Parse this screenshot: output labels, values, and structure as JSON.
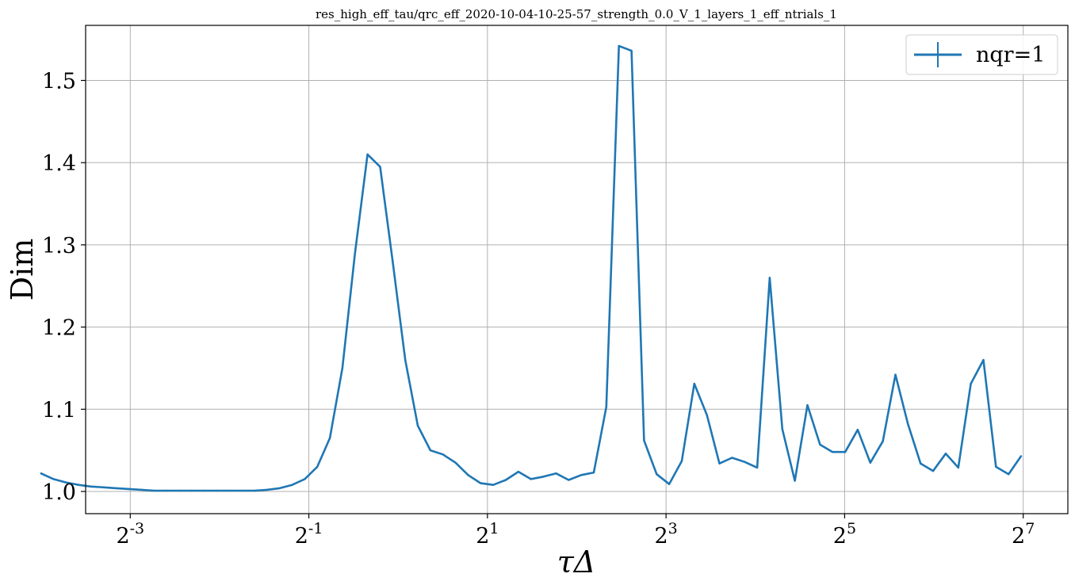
{
  "chart_data": {
    "type": "line",
    "title": "res_high_eff_tau/qrc_eff_2020-10-04-10-25-57_strength_0.0_V_1_layers_1_eff_ntrials_1",
    "xlabel": "τΔ",
    "ylabel": "Dim",
    "x_scale": "log2",
    "xlim": [
      0.0884,
      181.0
    ],
    "ylim": [
      0.973,
      1.567
    ],
    "grid": true,
    "legend_position": "top-right",
    "x_ticks": [
      {
        "base": "2",
        "exp": "-3",
        "value": 0.125
      },
      {
        "base": "2",
        "exp": "-1",
        "value": 0.5
      },
      {
        "base": "2",
        "exp": "1",
        "value": 2
      },
      {
        "base": "2",
        "exp": "3",
        "value": 8
      },
      {
        "base": "2",
        "exp": "5",
        "value": 32
      },
      {
        "base": "2",
        "exp": "7",
        "value": 128
      }
    ],
    "y_ticks": [
      {
        "label": "1.0",
        "value": 1.0
      },
      {
        "label": "1.1",
        "value": 1.1
      },
      {
        "label": "1.2",
        "value": 1.2
      },
      {
        "label": "1.3",
        "value": 1.3
      },
      {
        "label": "1.4",
        "value": 1.4
      },
      {
        "label": "1.5",
        "value": 1.5
      }
    ],
    "series": [
      {
        "name": "nqr=1",
        "color": "#1f77b4",
        "x": [
          0.0625,
          0.0689,
          0.0759,
          0.0837,
          0.0922,
          0.1017,
          0.1121,
          0.1236,
          0.1363,
          0.1502,
          0.1656,
          0.1826,
          0.2013,
          0.2219,
          0.2446,
          0.2697,
          0.2973,
          0.3278,
          0.3614,
          0.3984,
          0.4392,
          0.4842,
          0.5338,
          0.5885,
          0.6488,
          0.7153,
          0.7886,
          0.8694,
          0.9585,
          1.0567,
          1.165,
          1.2844,
          1.416,
          1.5611,
          1.7211,
          1.8975,
          2.0919,
          2.3063,
          2.5426,
          2.8032,
          3.0904,
          3.4071,
          3.7563,
          4.1412,
          4.5656,
          5.0335,
          5.5493,
          6.118,
          6.745,
          7.4362,
          8.1982,
          9.0384,
          9.9646,
          10.985,
          12.111,
          13.352,
          14.72,
          16.229,
          17.892,
          19.726,
          21.747,
          23.976,
          26.433,
          29.142,
          32.128,
          35.421,
          39.05,
          43.052,
          47.464,
          52.328,
          57.691,
          63.603,
          70.121,
          77.307,
          85.229,
          93.963,
          103.59,
          114.21,
          125.92
        ],
        "y": [
          1.022,
          1.015,
          1.011,
          1.008,
          1.006,
          1.005,
          1.004,
          1.003,
          1.002,
          1.001,
          1.001,
          1.001,
          1.001,
          1.001,
          1.001,
          1.001,
          1.001,
          1.001,
          1.002,
          1.004,
          1.008,
          1.015,
          1.03,
          1.065,
          1.15,
          1.29,
          1.41,
          1.395,
          1.28,
          1.16,
          1.08,
          1.05,
          1.045,
          1.035,
          1.02,
          1.01,
          1.008,
          1.014,
          1.024,
          1.015,
          1.018,
          1.022,
          1.014,
          1.02,
          1.023,
          1.103,
          1.542,
          1.536,
          1.062,
          1.021,
          1.009,
          1.037,
          1.131,
          1.093,
          1.034,
          1.041,
          1.036,
          1.029,
          1.26,
          1.076,
          1.013,
          1.105,
          1.057,
          1.048,
          1.048,
          1.075,
          1.035,
          1.061,
          1.142,
          1.082,
          1.034,
          1.025,
          1.046,
          1.029,
          1.131,
          1.16,
          1.03,
          1.021,
          1.043
        ]
      }
    ]
  }
}
